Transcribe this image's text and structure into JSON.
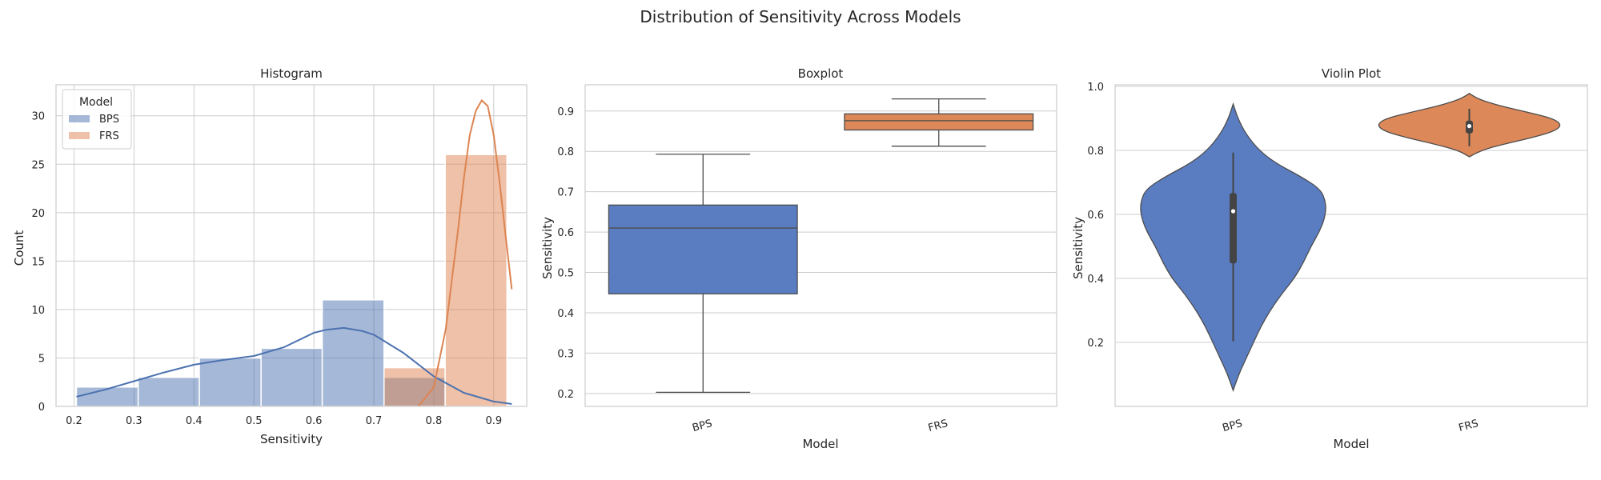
{
  "figure": {
    "title": "Distribution of Sensitivity Across Models"
  },
  "chart_data": [
    {
      "type": "histogram",
      "title": "Histogram",
      "xlabel": "Sensitivity",
      "ylabel": "Count",
      "xlim": [
        0.17,
        0.955
      ],
      "ylim": [
        0,
        33.2
      ],
      "xticks": [
        0.2,
        0.3,
        0.4,
        0.5,
        0.6,
        0.7,
        0.8,
        0.9
      ],
      "yticks": [
        0,
        5,
        10,
        15,
        20,
        25,
        30
      ],
      "grid": true,
      "legend": {
        "title": "Model",
        "placement": "top-left"
      },
      "bin_edges": [
        0.204,
        0.307,
        0.409,
        0.512,
        0.614,
        0.717,
        0.819,
        0.922
      ],
      "series": [
        {
          "name": "BPS",
          "color": "#4c72b0",
          "counts": [
            2,
            3,
            5,
            6,
            11,
            3,
            0
          ]
        },
        {
          "name": "FRS",
          "color": "#dd8452",
          "counts": [
            0,
            0,
            0,
            0,
            0,
            4,
            26
          ]
        }
      ],
      "kde": [
        {
          "name": "BPS",
          "color": "#4c72b0",
          "x": [
            0.204,
            0.25,
            0.3,
            0.35,
            0.4,
            0.45,
            0.5,
            0.55,
            0.6,
            0.62,
            0.65,
            0.68,
            0.7,
            0.75,
            0.8,
            0.85,
            0.9,
            0.93
          ],
          "y": [
            1.0,
            1.7,
            2.6,
            3.5,
            4.3,
            4.8,
            5.2,
            6.1,
            7.6,
            7.9,
            8.1,
            7.8,
            7.4,
            5.5,
            3.1,
            1.4,
            0.5,
            0.25
          ]
        },
        {
          "name": "FRS",
          "color": "#dd8452",
          "x": [
            0.775,
            0.8,
            0.82,
            0.84,
            0.85,
            0.86,
            0.87,
            0.88,
            0.89,
            0.9,
            0.91,
            0.92,
            0.93
          ],
          "y": [
            0.05,
            2,
            8,
            18,
            23.5,
            28,
            30.5,
            31.6,
            31,
            28,
            23,
            17.5,
            12.1
          ]
        }
      ]
    },
    {
      "type": "box",
      "title": "Boxplot",
      "xlabel": "Model",
      "ylabel": "Sensitivity",
      "ylim": [
        0.168,
        0.965
      ],
      "yticks": [
        0.2,
        0.3,
        0.4,
        0.5,
        0.6,
        0.7,
        0.8,
        0.9
      ],
      "categories": [
        "BPS",
        "FRS"
      ],
      "series": [
        {
          "name": "BPS",
          "color": "#5a7dc2",
          "min": 0.203,
          "q1": 0.447,
          "median": 0.61,
          "q3": 0.667,
          "max": 0.793
        },
        {
          "name": "FRS",
          "color": "#dc8858",
          "min": 0.813,
          "q1": 0.853,
          "median": 0.876,
          "q3": 0.893,
          "max": 0.93
        }
      ]
    },
    {
      "type": "violin",
      "title": "Violin Plot",
      "xlabel": "Model",
      "ylabel": "Sensitivity",
      "ylim": [
        0.0,
        1.005
      ],
      "yticks": [
        0.2,
        0.4,
        0.6,
        0.8,
        1.0
      ],
      "categories": [
        "BPS",
        "FRS"
      ],
      "series": [
        {
          "name": "BPS",
          "color": "#5a7dc2",
          "min": 0.203,
          "q1": 0.447,
          "median": 0.61,
          "q3": 0.667,
          "max": 0.793,
          "y": [
            0.05,
            0.1,
            0.15,
            0.2,
            0.25,
            0.3,
            0.35,
            0.4,
            0.45,
            0.5,
            0.55,
            0.6,
            0.64,
            0.68,
            0.72,
            0.76,
            0.8,
            0.85,
            0.9,
            0.945
          ],
          "density": [
            0,
            0.06,
            0.14,
            0.22,
            0.3,
            0.4,
            0.52,
            0.66,
            0.76,
            0.84,
            0.94,
            1.0,
            1.0,
            0.94,
            0.72,
            0.46,
            0.28,
            0.14,
            0.05,
            0
          ]
        },
        {
          "name": "FRS",
          "color": "#dc8858",
          "min": 0.813,
          "q1": 0.853,
          "median": 0.876,
          "q3": 0.893,
          "max": 0.93,
          "y": [
            0.78,
            0.8,
            0.82,
            0.84,
            0.86,
            0.88,
            0.9,
            0.92,
            0.94,
            0.96,
            0.978
          ],
          "density": [
            0,
            0.12,
            0.38,
            0.68,
            0.92,
            1.0,
            0.9,
            0.62,
            0.32,
            0.1,
            0
          ]
        }
      ]
    }
  ]
}
